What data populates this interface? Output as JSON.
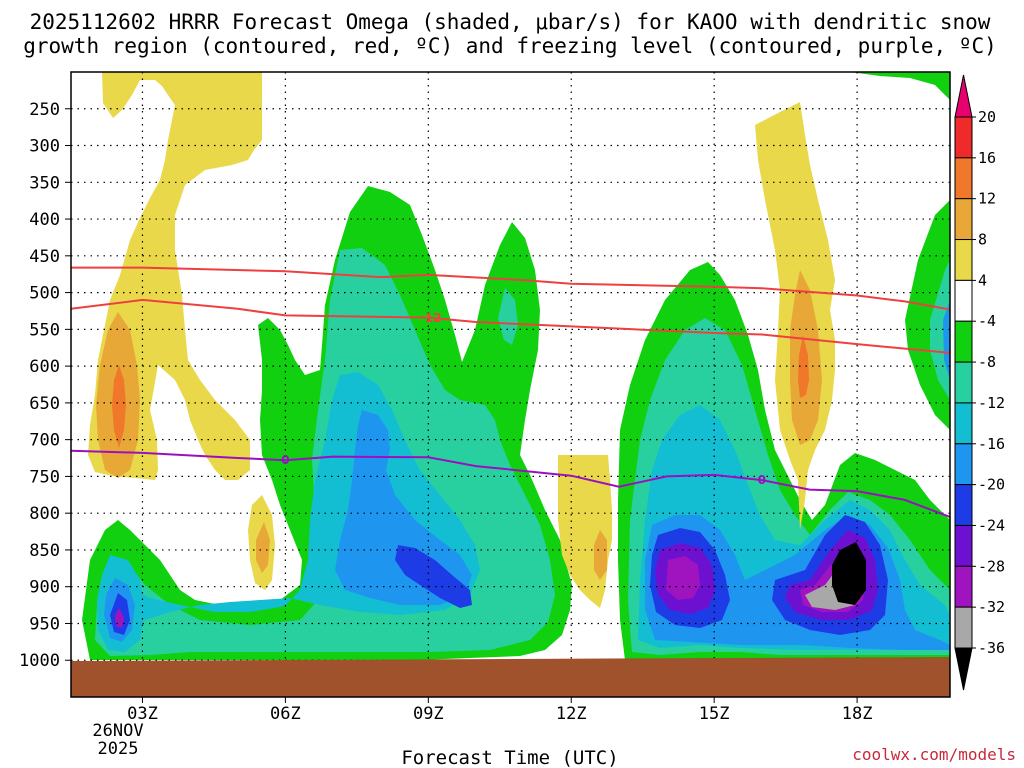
{
  "chart_data": {
    "type": "contour",
    "title_line1": "2025112602 HRRR Forecast Omega (shaded, μbar/s) for KAOO with dendritic snow",
    "title_line2": "growth region (contoured, red, ºC) and freezing level (contoured, purple, ºC)",
    "xlabel": "Forecast Time (UTC)",
    "credit": "coolwx.com/models",
    "x_range_hours": [
      1.5,
      19.95
    ],
    "y_range_hPa": [
      200,
      1050
    ],
    "y_ticks": [
      {
        "value": 250,
        "label": "250"
      },
      {
        "value": 300,
        "label": "300"
      },
      {
        "value": 350,
        "label": "350"
      },
      {
        "value": 400,
        "label": "400"
      },
      {
        "value": 450,
        "label": "450"
      },
      {
        "value": 500,
        "label": "500"
      },
      {
        "value": 550,
        "label": "550"
      },
      {
        "value": 600,
        "label": "600"
      },
      {
        "value": 650,
        "label": "650"
      },
      {
        "value": 700,
        "label": "700"
      },
      {
        "value": 750,
        "label": "750"
      },
      {
        "value": 800,
        "label": "800"
      },
      {
        "value": 850,
        "label": "850"
      },
      {
        "value": 900,
        "label": "900"
      },
      {
        "value": 950,
        "label": "950"
      },
      {
        "value": 1000,
        "label": "1000"
      }
    ],
    "x_ticks": [
      {
        "hour": 3,
        "label": "03Z"
      },
      {
        "hour": 6,
        "label": "06Z"
      },
      {
        "hour": 9,
        "label": "09Z"
      },
      {
        "hour": 12,
        "label": "12Z"
      },
      {
        "hour": 15,
        "label": "15Z"
      },
      {
        "hour": 18,
        "label": "18Z"
      }
    ],
    "date_line1": "26NOV",
    "date_line2": "2025",
    "colorbar": {
      "labels": [
        "20",
        "16",
        "12",
        "8",
        "4",
        "-4",
        "-8",
        "-12",
        "-16",
        "-20",
        "-24",
        "-28",
        "-32",
        "-36"
      ],
      "colors": [
        "#e8006e",
        "#ee2a2a",
        "#f0782a",
        "#e8a838",
        "#e8d84a",
        "#ffffff",
        "#10d010",
        "#28d0a0",
        "#14bed2",
        "#1e96f0",
        "#1e3ce6",
        "#6e10d0",
        "#a014c0",
        "#a8a8a8",
        "#000000"
      ]
    },
    "contours": [
      {
        "name": "dgz-upper",
        "label": "",
        "color": "#ee4040",
        "points": [
          [
            1.5,
            466
          ],
          [
            3,
            466
          ],
          [
            6,
            471
          ],
          [
            8,
            479
          ],
          [
            9,
            476
          ],
          [
            11,
            483
          ],
          [
            12,
            488
          ],
          [
            15,
            492
          ],
          [
            16,
            494
          ],
          [
            18,
            504
          ],
          [
            19,
            512
          ],
          [
            19.95,
            523
          ]
        ]
      },
      {
        "name": "dgz-lower",
        "label": "12",
        "color": "#ee4040",
        "points": [
          [
            1.5,
            522
          ],
          [
            3,
            510
          ],
          [
            5,
            522
          ],
          [
            6,
            531
          ],
          [
            8,
            533
          ],
          [
            9,
            534
          ],
          [
            10,
            540
          ],
          [
            12,
            546
          ],
          [
            15,
            555
          ],
          [
            16,
            557
          ],
          [
            18,
            570
          ],
          [
            19.95,
            582
          ]
        ]
      },
      {
        "name": "freezing-level",
        "label": "0",
        "color": "#9a10c0",
        "points": [
          [
            1.5,
            715
          ],
          [
            3,
            718
          ],
          [
            5,
            725
          ],
          [
            6,
            728
          ],
          [
            7,
            723
          ],
          [
            9,
            724
          ],
          [
            10,
            736
          ],
          [
            12,
            749
          ],
          [
            13,
            764
          ],
          [
            14,
            750
          ],
          [
            15,
            748
          ],
          [
            16,
            755
          ],
          [
            17,
            768
          ],
          [
            18,
            770
          ],
          [
            19,
            782
          ],
          [
            19.95,
            805
          ]
        ]
      }
    ]
  }
}
